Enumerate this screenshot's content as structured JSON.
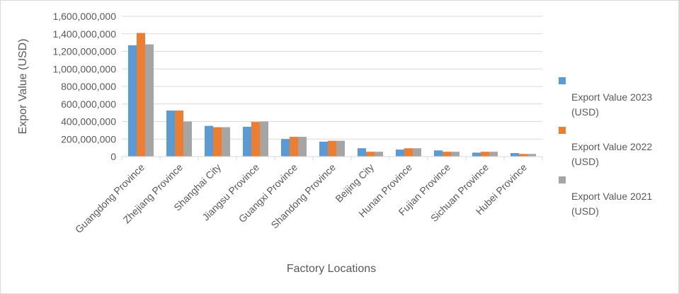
{
  "chart_data": {
    "type": "bar",
    "title": "",
    "xlabel": "Factory Locations",
    "ylabel": "Expor Value (USD)",
    "ylim": [
      0,
      1600000000
    ],
    "yticks": [
      0,
      200000000,
      400000000,
      600000000,
      800000000,
      1000000000,
      1200000000,
      1400000000,
      1600000000
    ],
    "ytick_labels": [
      "0",
      "200,000,000",
      "400,000,000",
      "600,000,000",
      "800,000,000",
      "1,000,000,000",
      "1,200,000,000",
      "1,400,000,000",
      "1,600,000,000"
    ],
    "grid": true,
    "legend_position": "right",
    "categories": [
      "Guangdong Province",
      "Zhejiang Province",
      "Shanghai City",
      "Jiangsu Province",
      "Guangxi Province",
      "Shandong Province",
      "Beijing City",
      "Hunan Province",
      "Fujian Province",
      "Sichuan Province",
      "Hubei Province"
    ],
    "series": [
      {
        "name": "Export Value 2023 (USD)",
        "legend_lines": [
          "Export Value 2023",
          "(USD)"
        ],
        "color": "#5b9bd5",
        "values": [
          1270000000,
          525000000,
          350000000,
          340000000,
          200000000,
          170000000,
          95000000,
          80000000,
          70000000,
          45000000,
          40000000
        ]
      },
      {
        "name": "Export Value 2022 (USD)",
        "legend_lines": [
          "Export Value 2022",
          "(USD)"
        ],
        "color": "#ed7d31",
        "values": [
          1410000000,
          525000000,
          335000000,
          395000000,
          225000000,
          180000000,
          55000000,
          95000000,
          55000000,
          55000000,
          30000000
        ]
      },
      {
        "name": "Export Value 2021 (USD)",
        "legend_lines": [
          "Export Value 2021",
          "(USD)"
        ],
        "color": "#a5a5a5",
        "values": [
          1280000000,
          400000000,
          335000000,
          400000000,
          225000000,
          180000000,
          55000000,
          95000000,
          55000000,
          55000000,
          30000000
        ]
      }
    ]
  }
}
